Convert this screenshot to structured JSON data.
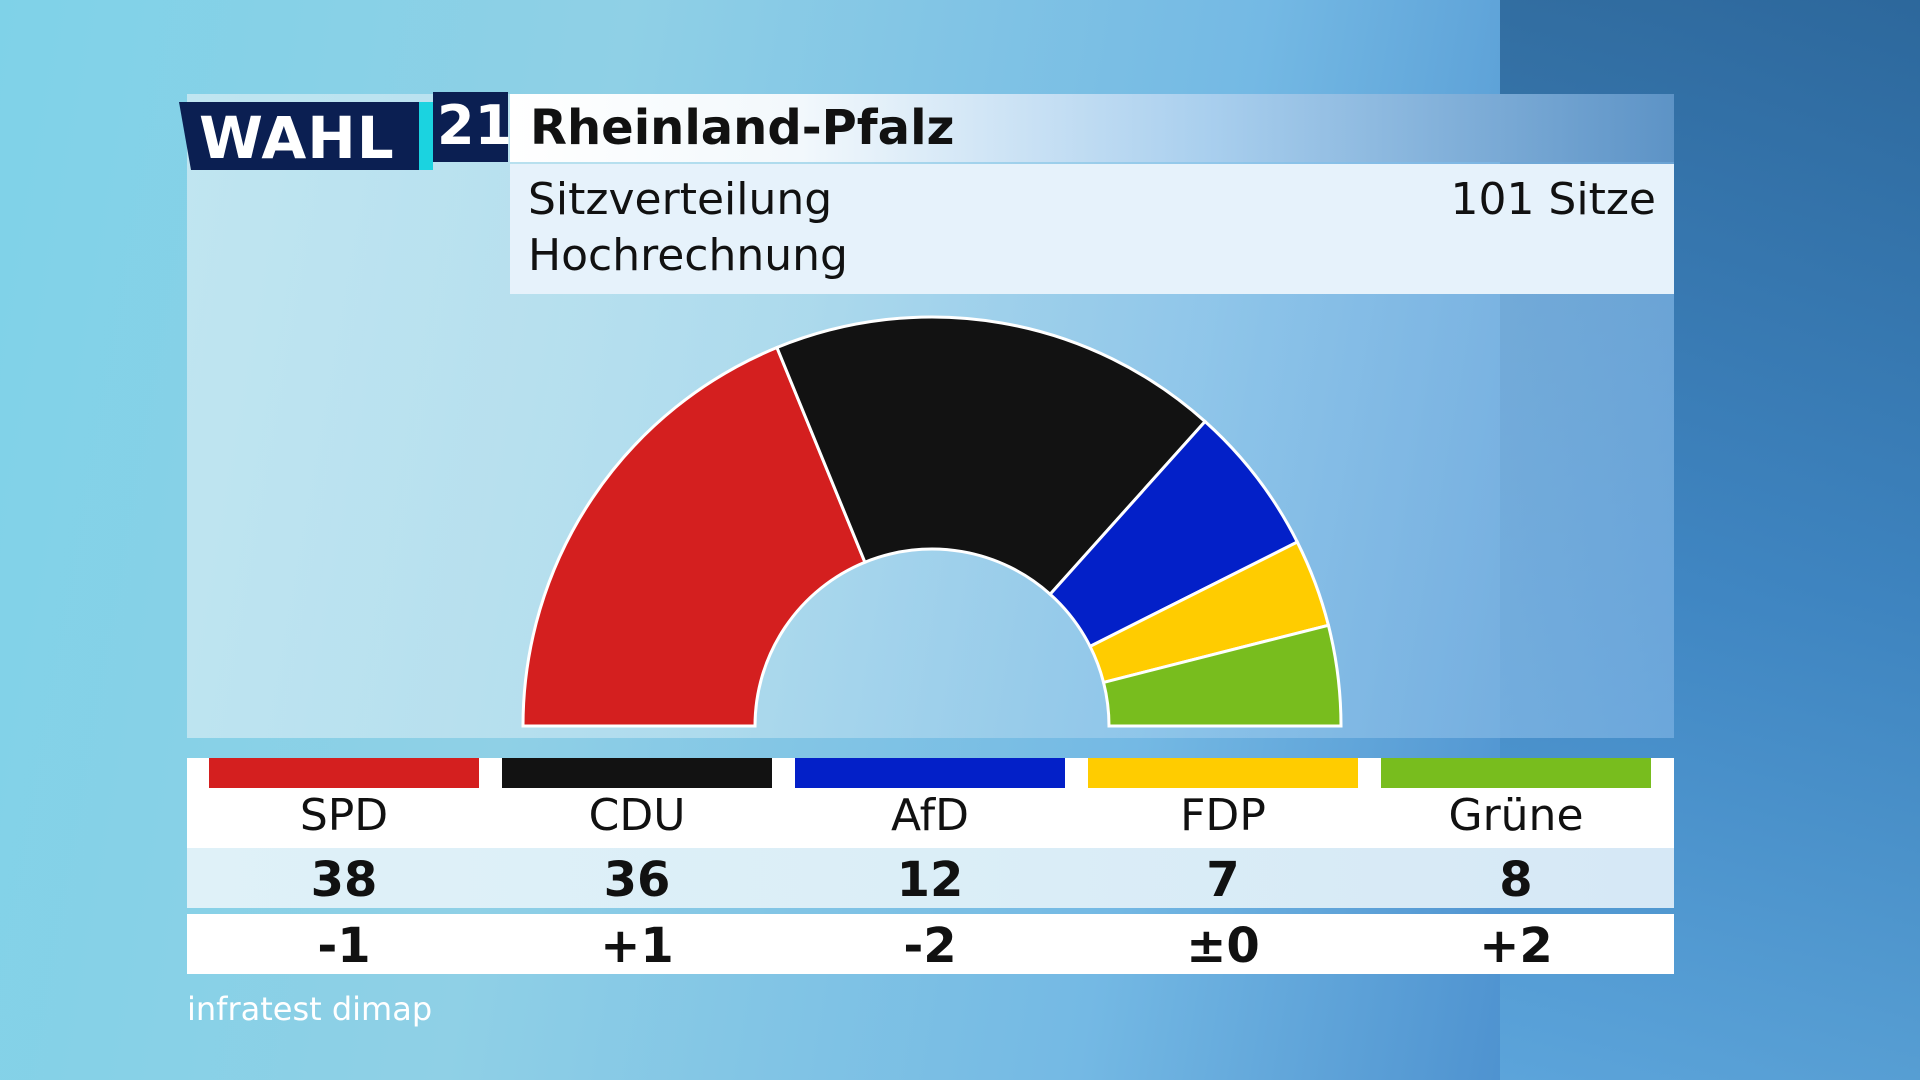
{
  "header": {
    "logo_word": "WAHL",
    "logo_number": "21",
    "title": "Rheinland-Pfalz",
    "subtitle_1": "Sitzverteilung",
    "subtitle_2": "Hochrechnung",
    "seats_total_label": "101 Sitze"
  },
  "source": "infratest dimap",
  "chart_data": {
    "type": "pie",
    "shape": "semicircle (parliament seat distribution)",
    "total": 101,
    "categories": [
      "SPD",
      "CDU",
      "AfD",
      "FDP",
      "Grüne"
    ],
    "values": [
      38,
      36,
      12,
      7,
      8
    ],
    "changes": [
      "-1",
      "+1",
      "-2",
      "±0",
      "+2"
    ],
    "colors": [
      "#d41f1f",
      "#121212",
      "#0320c8",
      "#ffcc00",
      "#78bd1e"
    ]
  },
  "parties": [
    {
      "name": "SPD",
      "seats": "38",
      "change": "-1",
      "color": "#d41f1f"
    },
    {
      "name": "CDU",
      "seats": "36",
      "change": "+1",
      "color": "#121212"
    },
    {
      "name": "AfD",
      "seats": "12",
      "change": "-2",
      "color": "#0320c8"
    },
    {
      "name": "FDP",
      "seats": "7",
      "change": "±0",
      "color": "#ffcc00"
    },
    {
      "name": "Grüne",
      "seats": "8",
      "change": "+2",
      "color": "#78bd1e"
    }
  ]
}
